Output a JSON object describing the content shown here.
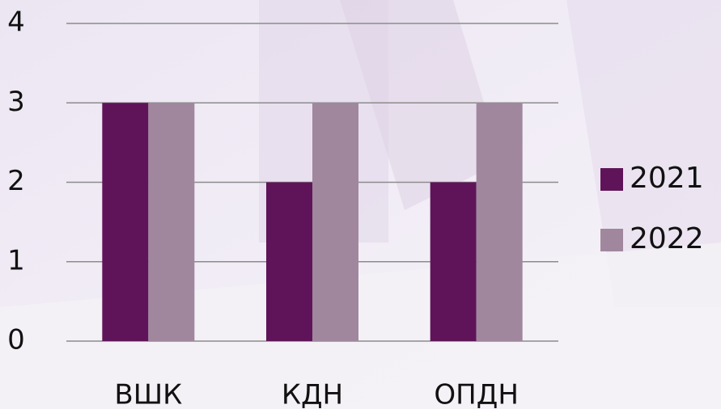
{
  "chart_data": {
    "type": "bar",
    "categories": [
      "ВШК",
      "КДН",
      "ОПДН"
    ],
    "series": [
      {
        "name": "2021",
        "color": "#5f1459",
        "values": [
          3,
          2,
          2
        ]
      },
      {
        "name": "2022",
        "color": "#a0879e",
        "values": [
          3,
          3,
          3
        ]
      }
    ],
    "ylim": [
      0,
      4
    ],
    "yticks": [
      0,
      1,
      2,
      3,
      4
    ],
    "grid": true,
    "legend": "right"
  }
}
